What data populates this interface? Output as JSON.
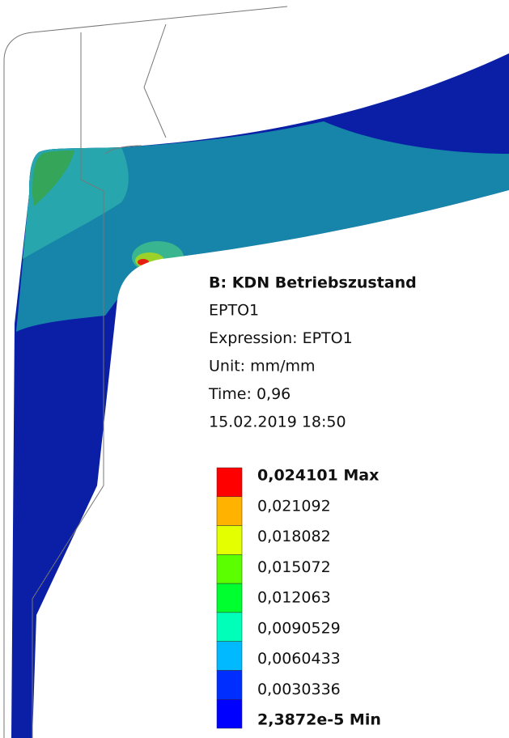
{
  "result": {
    "title": "B: KDN Betriebszustand",
    "lines": [
      "EPTO1",
      "Expression: EPTO1",
      "Unit: mm/mm",
      "Time: 0,96",
      "15.02.2019 18:50"
    ]
  },
  "legend": [
    {
      "label": "0,024101 Max",
      "color": "#ff0000"
    },
    {
      "label": "0,021092",
      "color": "#ffb200"
    },
    {
      "label": "0,018082",
      "color": "#e3ff00"
    },
    {
      "label": "0,015072",
      "color": "#5cff00"
    },
    {
      "label": "0,012063",
      "color": "#00ff2e"
    },
    {
      "label": "0,0090529",
      "color": "#00ffb9"
    },
    {
      "label": "0,0060433",
      "color": "#00b9ff"
    },
    {
      "label": "0,0030336",
      "color": "#002eff"
    },
    {
      "label": "2,3872e-5 Min",
      "color": "#0000ff"
    }
  ]
}
